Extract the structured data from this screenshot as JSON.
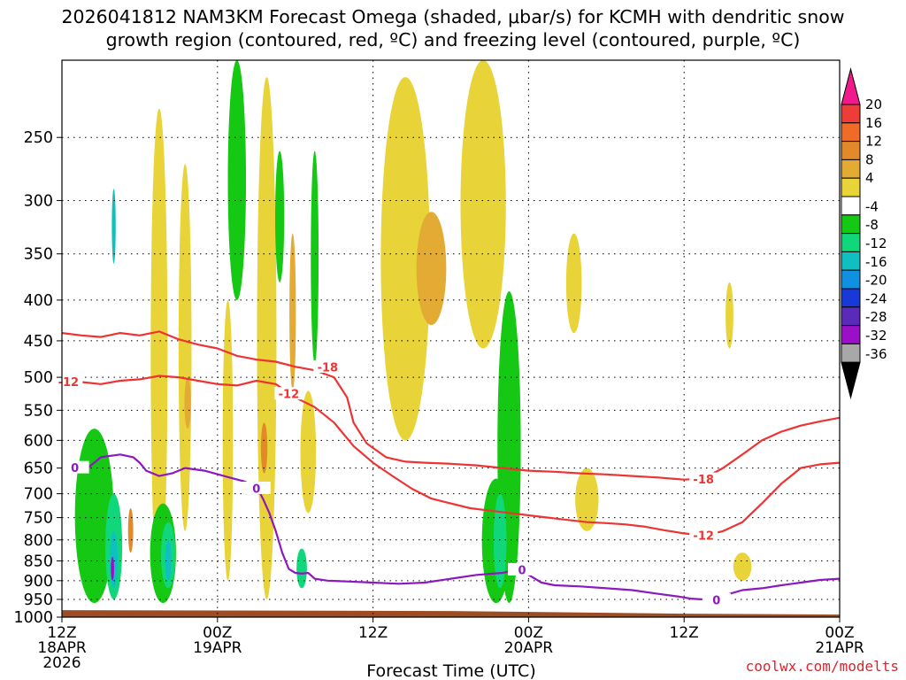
{
  "chart_data": {
    "type": "heatmap",
    "title_line1": "2026041812 NAM3KM Forecast Omega (shaded, μbar/s) for KCMH with dendritic snow",
    "title_line2": "growth region (contoured, red, ºC) and freezing level (contoured, purple, ºC)",
    "xlabel": "Forecast Time (UTC)",
    "credit": "coolwx.com/modelts",
    "x_ticks": [
      {
        "hour": 0,
        "line1": "12Z",
        "line2": "18APR",
        "line3": "2026"
      },
      {
        "hour": 12,
        "line1": "00Z",
        "line2": "19APR",
        "line3": ""
      },
      {
        "hour": 24,
        "line1": "12Z",
        "line2": "",
        "line3": ""
      },
      {
        "hour": 36,
        "line1": "00Z",
        "line2": "20APR",
        "line3": ""
      },
      {
        "hour": 48,
        "line1": "12Z",
        "line2": "",
        "line3": ""
      },
      {
        "hour": 60,
        "line1": "00Z",
        "line2": "21APR",
        "line3": ""
      }
    ],
    "x_range_hours": [
      0,
      60
    ],
    "y_ticks": [
      250,
      300,
      350,
      400,
      450,
      500,
      550,
      600,
      650,
      700,
      750,
      800,
      850,
      900,
      950,
      1000
    ],
    "y_range_hpa": [
      200,
      1000
    ],
    "y_scale": "log-pressure",
    "grid": "dotted",
    "colorbar": {
      "ticks": [
        "20",
        "16",
        "12",
        "8",
        "4",
        "-4",
        "-8",
        "-12",
        "-16",
        "-20",
        "-24",
        "-28",
        "-32",
        "-36"
      ],
      "colors": [
        "#f01a8c",
        "#ee3c38",
        "#f06a28",
        "#e28a2a",
        "#e3aa34",
        "#e8d338",
        "#ffffff",
        "#14c814",
        "#10d87a",
        "#10c0c0",
        "#1090e0",
        "#1838d8",
        "#5a2ab8",
        "#9a10c8",
        "#a8a8a8",
        "#000000"
      ]
    },
    "dgz_contours": [
      {
        "label": "-12",
        "color": "#ee3333",
        "points": [
          [
            0,
            507
          ],
          [
            1.5,
            507
          ],
          [
            3,
            510
          ],
          [
            4.5,
            505
          ],
          [
            6,
            503
          ],
          [
            7.5,
            498
          ],
          [
            9,
            500
          ],
          [
            10.5,
            505
          ],
          [
            12,
            510
          ],
          [
            13.5,
            512
          ],
          [
            15,
            505
          ],
          [
            16.5,
            510
          ],
          [
            18,
            530
          ],
          [
            19.5,
            545
          ],
          [
            21,
            570
          ],
          [
            22.5,
            610
          ],
          [
            24,
            640
          ],
          [
            25.5,
            665
          ],
          [
            27,
            690
          ],
          [
            28.5,
            710
          ],
          [
            30,
            720
          ],
          [
            31.5,
            730
          ],
          [
            33,
            735
          ],
          [
            34.5,
            740
          ],
          [
            36,
            745
          ],
          [
            37.5,
            750
          ],
          [
            39,
            755
          ],
          [
            40.5,
            760
          ],
          [
            42,
            762
          ],
          [
            43.5,
            765
          ],
          [
            45,
            770
          ],
          [
            46.5,
            778
          ],
          [
            48,
            785
          ],
          [
            49.5,
            790
          ],
          [
            51,
            780
          ],
          [
            52.5,
            760
          ],
          [
            54,
            720
          ],
          [
            55.5,
            680
          ],
          [
            57,
            650
          ],
          [
            58.5,
            643
          ],
          [
            60,
            640
          ]
        ]
      },
      {
        "label": "-18",
        "color": "#ee3333",
        "points": [
          [
            0,
            440
          ],
          [
            1.5,
            443
          ],
          [
            3,
            445
          ],
          [
            4.5,
            440
          ],
          [
            6,
            443
          ],
          [
            7.5,
            438
          ],
          [
            9,
            448
          ],
          [
            10.5,
            455
          ],
          [
            12,
            460
          ],
          [
            13.5,
            470
          ],
          [
            15,
            475
          ],
          [
            16.5,
            478
          ],
          [
            18,
            485
          ],
          [
            19.5,
            490
          ],
          [
            21,
            500
          ],
          [
            22,
            530
          ],
          [
            22.5,
            570
          ],
          [
            23.5,
            605
          ],
          [
            25,
            630
          ],
          [
            26.5,
            638
          ],
          [
            28,
            640
          ],
          [
            30,
            642
          ],
          [
            32,
            645
          ],
          [
            34,
            650
          ],
          [
            36,
            655
          ],
          [
            38,
            657
          ],
          [
            40,
            660
          ],
          [
            42,
            662
          ],
          [
            44,
            665
          ],
          [
            46,
            668
          ],
          [
            48,
            672
          ],
          [
            49.5,
            670
          ],
          [
            51,
            650
          ],
          [
            52.5,
            625
          ],
          [
            54,
            600
          ],
          [
            55.5,
            585
          ],
          [
            57,
            575
          ],
          [
            58.5,
            568
          ],
          [
            60,
            562
          ]
        ]
      }
    ],
    "freezing_contour": {
      "label": "0",
      "color": "#8d18c0",
      "points": [
        [
          0,
          640
        ],
        [
          1,
          655
        ],
        [
          2,
          650
        ],
        [
          3,
          630
        ],
        [
          4.5,
          625
        ],
        [
          5.5,
          630
        ],
        [
          6,
          640
        ],
        [
          6.5,
          655
        ],
        [
          7.5,
          665
        ],
        [
          8.5,
          660
        ],
        [
          9.5,
          650
        ],
        [
          11,
          655
        ],
        [
          12.5,
          665
        ],
        [
          14,
          675
        ],
        [
          15,
          685
        ],
        [
          15.5,
          710
        ],
        [
          16,
          740
        ],
        [
          16.5,
          780
        ],
        [
          17,
          830
        ],
        [
          17.5,
          870
        ],
        [
          18,
          880
        ],
        [
          18.5,
          882
        ],
        [
          19,
          880
        ],
        [
          19.5,
          895
        ],
        [
          20.5,
          900
        ],
        [
          22,
          902
        ],
        [
          24,
          905
        ],
        [
          26,
          908
        ],
        [
          28,
          905
        ],
        [
          30,
          895
        ],
        [
          32,
          885
        ],
        [
          34,
          880
        ],
        [
          35,
          873
        ],
        [
          35.5,
          875
        ],
        [
          36,
          885
        ],
        [
          37,
          905
        ],
        [
          38,
          912
        ],
        [
          40,
          915
        ],
        [
          42,
          920
        ],
        [
          44,
          925
        ],
        [
          46,
          935
        ],
        [
          47.5,
          942
        ],
        [
          48.5,
          948
        ],
        [
          49.5,
          950
        ],
        [
          51,
          940
        ],
        [
          52.5,
          925
        ],
        [
          54,
          920
        ],
        [
          55.5,
          912
        ],
        [
          57,
          905
        ],
        [
          58.5,
          898
        ],
        [
          60,
          895
        ]
      ]
    },
    "shaded_regions": [
      {
        "label": "4",
        "color": "#e8d338",
        "cx": 7.5,
        "p1": 230,
        "p2": 940,
        "w": 1.3
      },
      {
        "label": "4",
        "color": "#e8d338",
        "cx": 9.5,
        "p1": 270,
        "p2": 780,
        "w": 1.0
      },
      {
        "label": "4",
        "color": "#e8d338",
        "cx": 12.8,
        "p1": 400,
        "p2": 900,
        "w": 0.8
      },
      {
        "label": "4",
        "color": "#e8d338",
        "cx": 15.8,
        "p1": 210,
        "p2": 950,
        "w": 1.5
      },
      {
        "label": "4",
        "color": "#e8d338",
        "cx": 19,
        "p1": 520,
        "p2": 740,
        "w": 1.2
      },
      {
        "label": "4",
        "color": "#e8d338",
        "cx": 26.5,
        "p1": 210,
        "p2": 600,
        "w": 3.8
      },
      {
        "label": "4",
        "color": "#e8d338",
        "cx": 32.5,
        "p1": 200,
        "p2": 460,
        "w": 3.5
      },
      {
        "label": "4",
        "color": "#e8d338",
        "cx": 39.5,
        "p1": 330,
        "p2": 440,
        "w": 1.2
      },
      {
        "label": "4",
        "color": "#e8d338",
        "cx": 40.5,
        "p1": 650,
        "p2": 780,
        "w": 1.8
      },
      {
        "label": "4",
        "color": "#e8d338",
        "cx": 51.5,
        "p1": 380,
        "p2": 460,
        "w": 0.6
      },
      {
        "label": "4",
        "color": "#e8d338",
        "cx": 52.5,
        "p1": 830,
        "p2": 900,
        "w": 1.4
      },
      {
        "label": "8",
        "color": "#e3aa34",
        "cx": 28.5,
        "p1": 310,
        "p2": 430,
        "w": 2.3
      },
      {
        "label": "8",
        "color": "#e3aa34",
        "cx": 9.7,
        "p1": 500,
        "p2": 580,
        "w": 0.5
      },
      {
        "label": "8",
        "color": "#e3aa34",
        "cx": 17.8,
        "p1": 330,
        "p2": 520,
        "w": 0.5
      },
      {
        "label": "12",
        "color": "#e28a2a",
        "cx": 15.6,
        "p1": 570,
        "p2": 660,
        "w": 0.5
      },
      {
        "label": "12",
        "color": "#e28a2a",
        "cx": 5.3,
        "p1": 730,
        "p2": 830,
        "w": 0.4
      },
      {
        "label": "-4",
        "color": "#14c814",
        "cx": 13.5,
        "p1": 200,
        "p2": 400,
        "w": 1.4
      },
      {
        "label": "-4",
        "color": "#14c814",
        "cx": 16.8,
        "p1": 260,
        "p2": 380,
        "w": 0.7
      },
      {
        "label": "-4",
        "color": "#14c814",
        "cx": 19.5,
        "p1": 260,
        "p2": 480,
        "w": 0.6
      },
      {
        "label": "-4",
        "color": "#14c814",
        "cx": 34.5,
        "p1": 390,
        "p2": 960,
        "w": 1.8
      },
      {
        "label": "-4",
        "color": "#14c814",
        "cx": 2.5,
        "p1": 580,
        "p2": 960,
        "w": 3.0
      },
      {
        "label": "-4",
        "color": "#14c814",
        "cx": 7.8,
        "p1": 720,
        "p2": 960,
        "w": 2.0
      },
      {
        "label": "-4",
        "color": "#14c814",
        "cx": 33.5,
        "p1": 670,
        "p2": 960,
        "w": 2.2
      },
      {
        "label": "-8",
        "color": "#10d87a",
        "cx": 4,
        "p1": 700,
        "p2": 950,
        "w": 1.3
      },
      {
        "label": "-8",
        "color": "#10d87a",
        "cx": 8.2,
        "p1": 760,
        "p2": 920,
        "w": 1.1
      },
      {
        "label": "-8",
        "color": "#10d87a",
        "cx": 33.8,
        "p1": 700,
        "p2": 920,
        "w": 1.0
      },
      {
        "label": "-8",
        "color": "#10d87a",
        "cx": 18.5,
        "p1": 820,
        "p2": 920,
        "w": 0.8
      },
      {
        "label": "-12",
        "color": "#10c0c0",
        "cx": 4.0,
        "p1": 780,
        "p2": 920,
        "w": 0.6
      },
      {
        "label": "-12",
        "color": "#10c0c0",
        "cx": 8.2,
        "p1": 800,
        "p2": 900,
        "w": 0.5
      },
      {
        "label": "-12",
        "color": "#10c0c0",
        "cx": 4.0,
        "p1": 290,
        "p2": 360,
        "w": 0.3
      },
      {
        "label": "-28",
        "color": "#9a10c8",
        "cx": 3.9,
        "p1": 840,
        "p2": 900,
        "w": 0.25
      }
    ],
    "terrain_color": "#9c4d24"
  }
}
